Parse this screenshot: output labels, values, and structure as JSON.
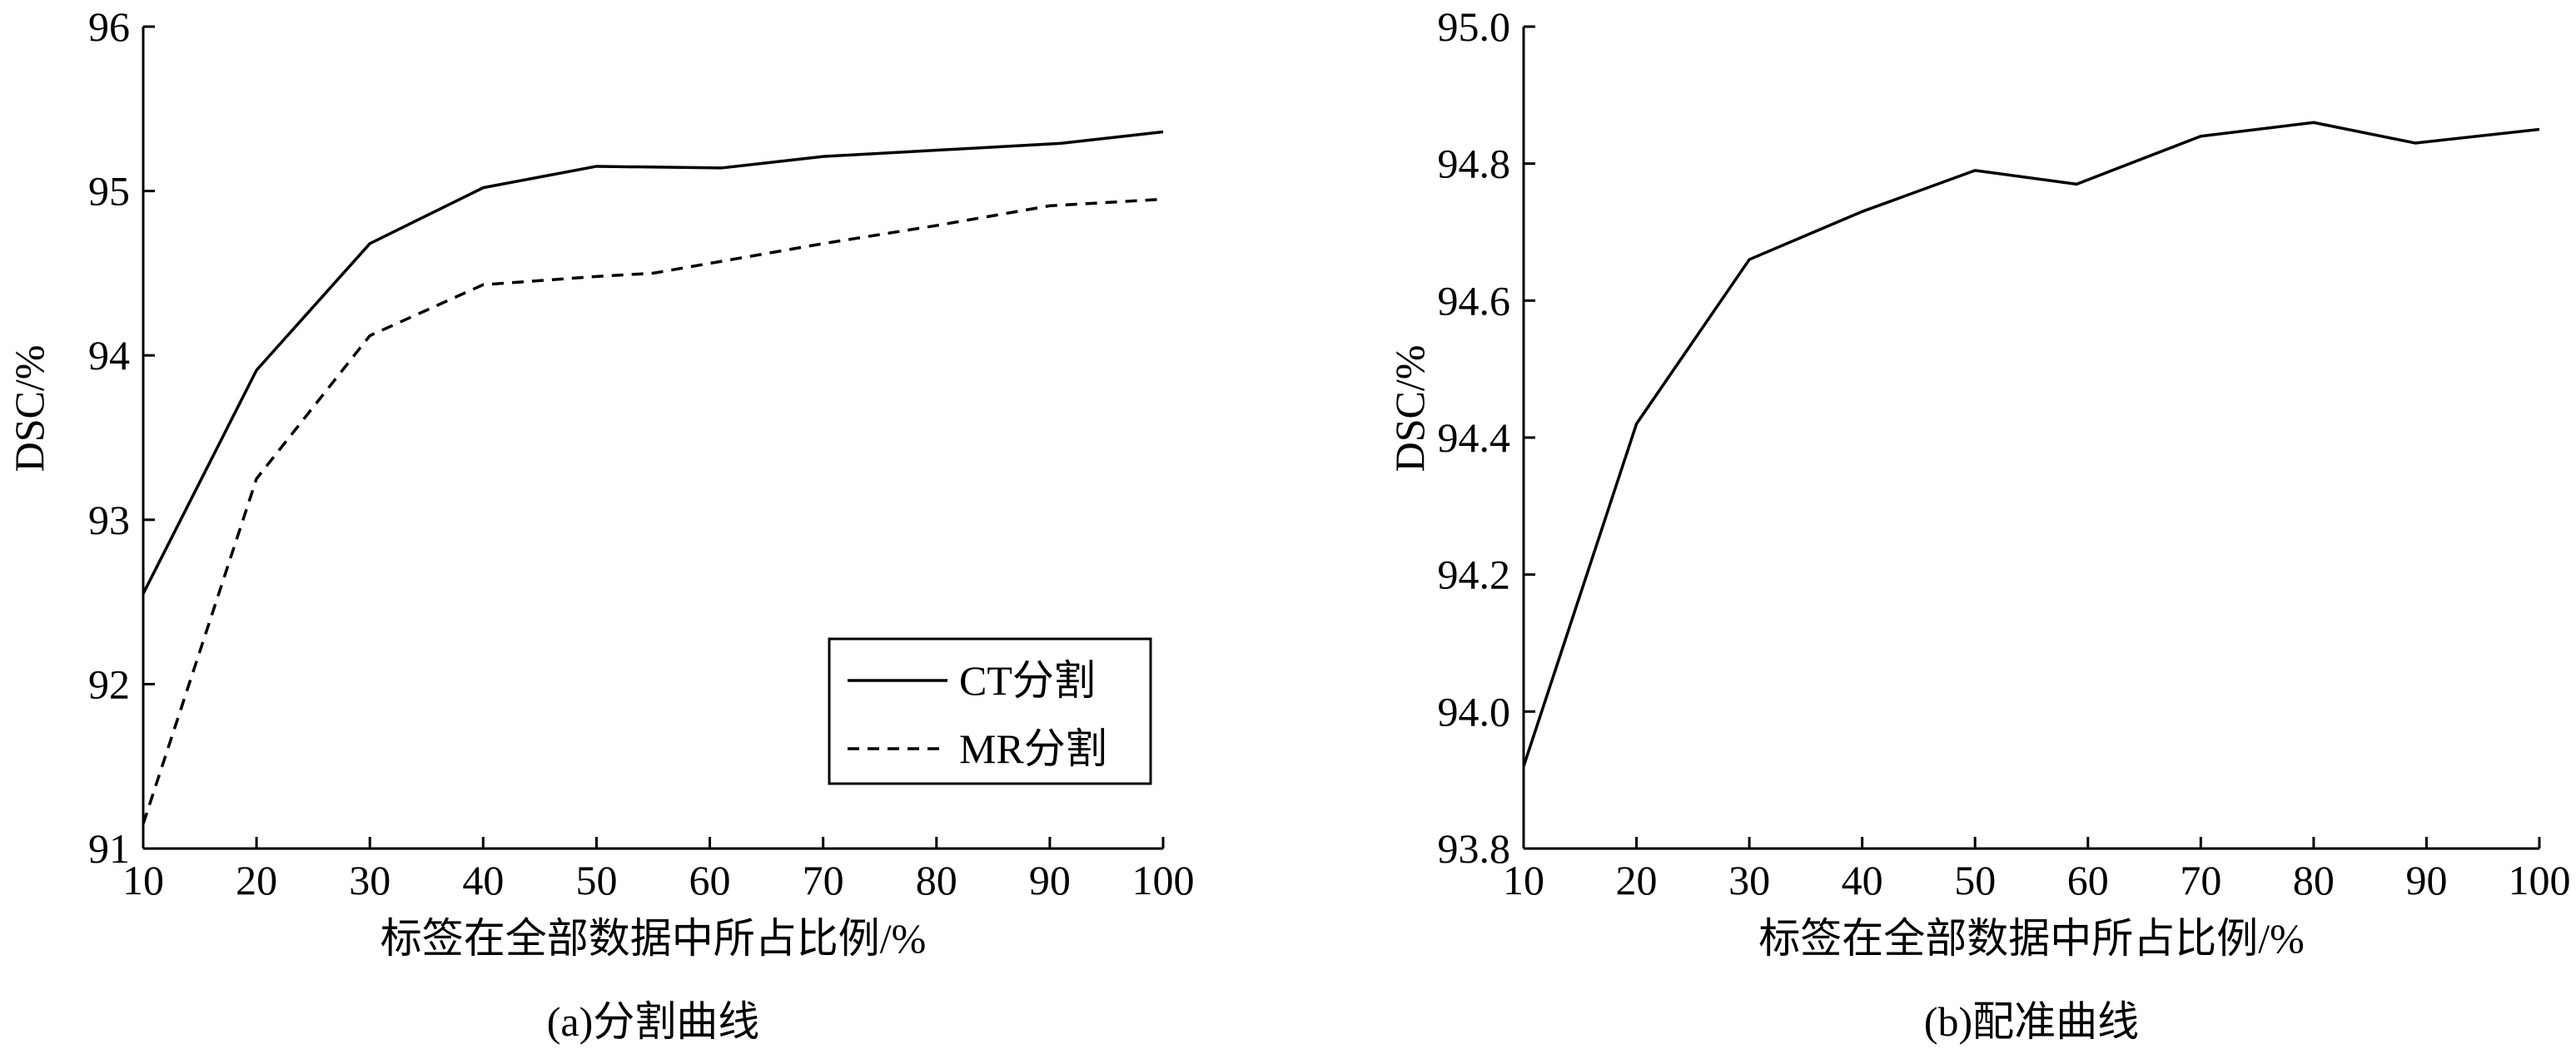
{
  "chart_data": [
    {
      "type": "line",
      "caption": "(a)分割曲线",
      "xlabel": "标签在全部数据中所占比例/%",
      "ylabel": "DSC/%",
      "xlim": [
        10,
        100
      ],
      "ylim": [
        91,
        96
      ],
      "x_ticks": [
        10,
        20,
        30,
        40,
        50,
        60,
        70,
        80,
        90,
        100
      ],
      "y_ticks": [
        91,
        92,
        93,
        94,
        95,
        96
      ],
      "y_tick_labels": [
        "91",
        "92",
        "93",
        "94",
        "95",
        "96"
      ],
      "legend": "bottom-right",
      "grid": false,
      "series": [
        {
          "name": "CT分割",
          "style": "solid",
          "x": [
            10,
            20,
            30,
            40,
            50,
            61,
            70,
            91,
            100
          ],
          "y": [
            92.55,
            93.91,
            94.68,
            95.02,
            95.15,
            95.14,
            95.21,
            95.29,
            95.36
          ]
        },
        {
          "name": "MR分割",
          "style": "dashed",
          "x": [
            10,
            20,
            30,
            40,
            50,
            55,
            60,
            70,
            80,
            90,
            100
          ],
          "y": [
            91.15,
            93.25,
            94.12,
            94.43,
            94.48,
            94.5,
            94.56,
            94.68,
            94.79,
            94.91,
            94.95
          ]
        }
      ]
    },
    {
      "type": "line",
      "caption": "(b)配准曲线",
      "xlabel": "标签在全部数据中所占比例/%",
      "ylabel": "DSC/%",
      "xlim": [
        10,
        100
      ],
      "ylim": [
        93.8,
        95.0
      ],
      "x_ticks": [
        10,
        20,
        30,
        40,
        50,
        60,
        70,
        80,
        90,
        100
      ],
      "y_ticks": [
        93.8,
        94.0,
        94.2,
        94.4,
        94.6,
        94.8,
        95.0
      ],
      "y_tick_labels": [
        "93.8",
        "94.0",
        "94.2",
        "94.4",
        "94.6",
        "94.8",
        "95.0"
      ],
      "grid": false,
      "series": [
        {
          "style": "solid",
          "x": [
            10,
            20,
            30,
            40,
            50,
            59,
            70,
            80,
            89,
            100
          ],
          "y": [
            93.92,
            94.42,
            94.66,
            94.73,
            94.79,
            94.77,
            94.84,
            94.86,
            94.83,
            94.85
          ]
        }
      ]
    }
  ]
}
